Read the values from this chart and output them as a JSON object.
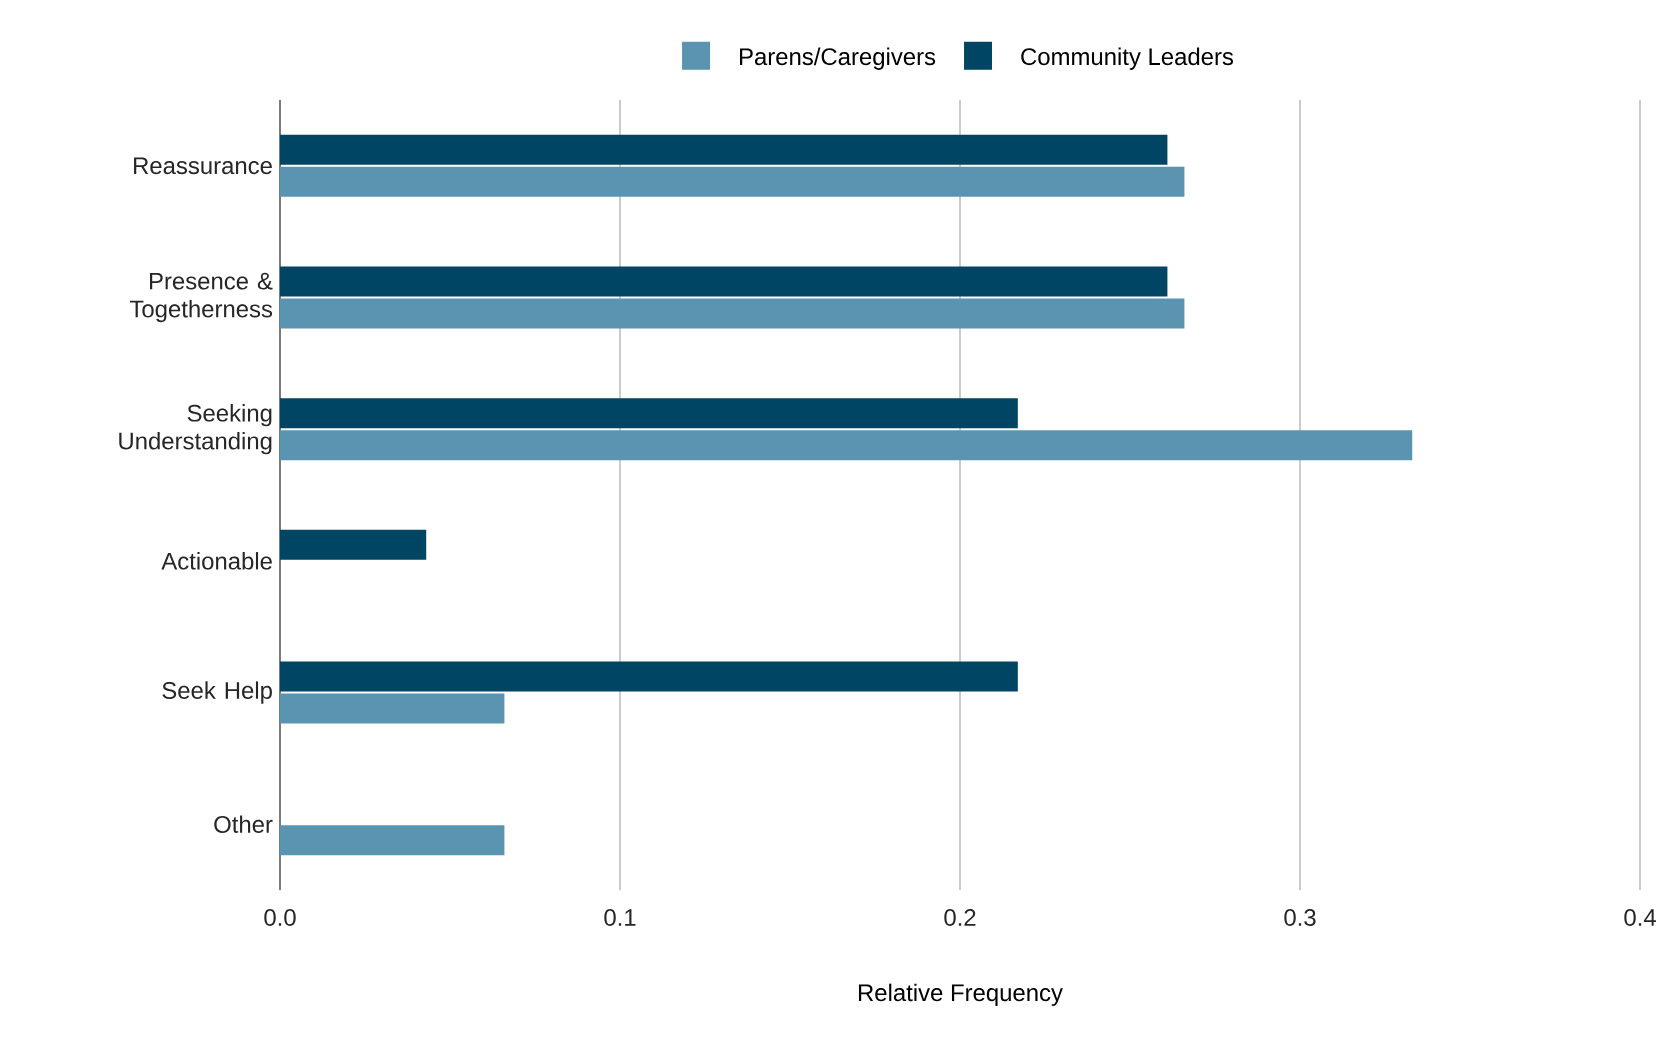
{
  "chart_data": {
    "type": "bar",
    "orientation": "horizontal",
    "xlabel": "Relative Frequency",
    "categories": [
      "Reassurance",
      "Presence & Togetherness",
      "Seeking Understanding",
      "Actionable",
      "Seek Help",
      "Other"
    ],
    "series": [
      {
        "name": "Parens/Caregivers",
        "color": "#5b94b1",
        "values": [
          0.266,
          0.266,
          0.333,
          0,
          0.066,
          0.066
        ]
      },
      {
        "name": "Community Leaders",
        "color": "#004563",
        "values": [
          0.261,
          0.261,
          0.217,
          0.043,
          0.217,
          0
        ]
      }
    ],
    "xlim": [
      0,
      0.4
    ],
    "xticks": [
      {
        "value": 0,
        "label": "0.0"
      },
      0.1,
      0.2,
      0.3,
      0.4
    ],
    "grid": "x",
    "legend": "top"
  }
}
